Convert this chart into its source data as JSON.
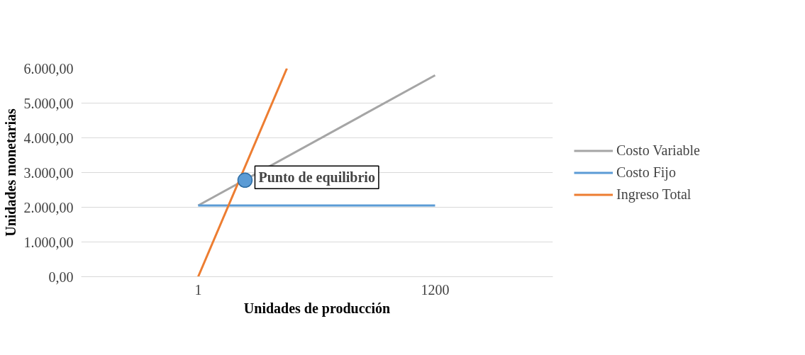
{
  "chart_data": {
    "type": "line",
    "xlabel": "Unidades de producción",
    "ylabel": "Unidades monetarias",
    "xlim": [
      -591,
      1796
    ],
    "xticks": [
      1,
      1200
    ],
    "ylim": [
      0,
      6000
    ],
    "yticks": [
      {
        "value": 0,
        "label": "0,00"
      },
      {
        "value": 1000,
        "label": "1.000,00"
      },
      {
        "value": 2000,
        "label": "2.000,00"
      },
      {
        "value": 3000,
        "label": "3.000,00"
      },
      {
        "value": 4000,
        "label": "4.000,00"
      },
      {
        "value": 5000,
        "label": "5.000,00"
      },
      {
        "value": 6000,
        "label": "6.000,00"
      }
    ],
    "series": [
      {
        "name": "Costo Variable",
        "color": "#a5a5a5",
        "x": [
          1,
          1200
        ],
        "values": [
          2050,
          5800
        ]
      },
      {
        "name": "Costo Fijo",
        "color": "#5b9bd5",
        "x": [
          1,
          1200
        ],
        "values": [
          2050,
          2050
        ]
      },
      {
        "name": "Ingreso Total",
        "color": "#ed7d31",
        "x": [
          1,
          450
        ],
        "values": [
          0,
          6000
        ]
      }
    ],
    "annotations": [
      {
        "text": "Punto de equilibrio",
        "x": 238,
        "y": 2780
      }
    ],
    "grid": "y",
    "legend": "right",
    "marker": "none",
    "line_style": "solid"
  }
}
